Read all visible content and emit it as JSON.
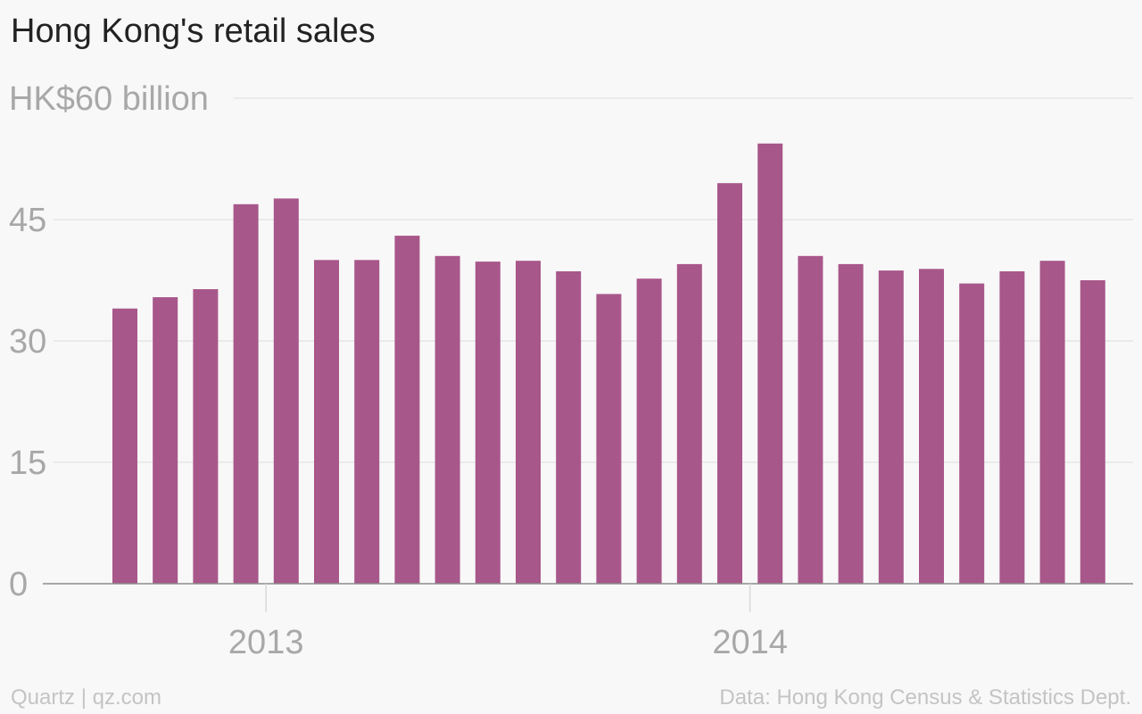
{
  "chart_data": {
    "type": "bar",
    "title": "Hong Kong's retail sales",
    "y_top_label_prefix": "HK$",
    "y_top_label_suffix": " billion",
    "ylim": [
      0,
      60
    ],
    "yticks": [
      0,
      15,
      30,
      45,
      60
    ],
    "grid": true,
    "bar_color": "#a8578a",
    "x_start": "2012-09",
    "xtick_labels": [
      {
        "label": "2013",
        "date": "2013-01"
      },
      {
        "label": "2014",
        "date": "2014-01"
      }
    ],
    "categories": [
      "2012-09",
      "2012-10",
      "2012-11",
      "2012-12",
      "2013-01",
      "2013-02",
      "2013-03",
      "2013-04",
      "2013-05",
      "2013-06",
      "2013-07",
      "2013-08",
      "2013-09",
      "2013-10",
      "2013-11",
      "2013-12",
      "2014-01",
      "2014-02",
      "2014-03",
      "2014-04",
      "2014-05",
      "2014-06",
      "2014-07",
      "2014-08",
      "2014-09"
    ],
    "values": [
      34.0,
      35.4,
      36.4,
      46.9,
      47.6,
      40.0,
      40.0,
      43.0,
      40.5,
      39.8,
      39.9,
      38.6,
      35.8,
      37.7,
      39.5,
      49.5,
      54.4,
      40.5,
      39.5,
      38.7,
      38.9,
      37.1,
      38.6,
      39.9,
      37.5
    ]
  },
  "footer": {
    "source_left": "Quartz | qz.com",
    "source_right": "Data: Hong Kong Census & Statistics Dept."
  }
}
